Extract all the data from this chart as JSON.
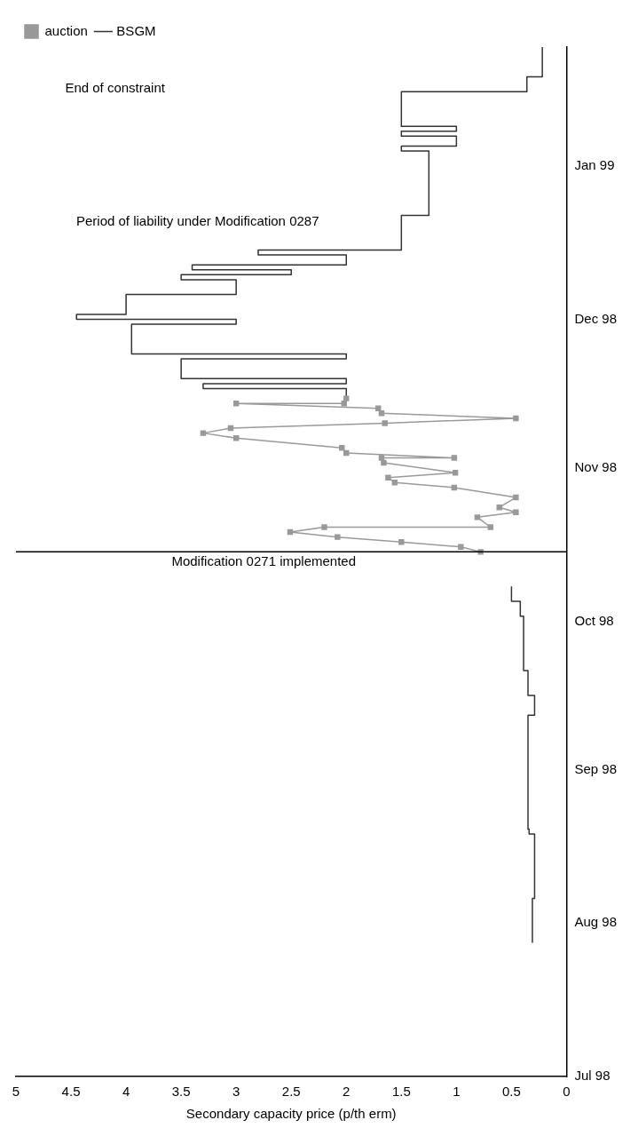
{
  "chart_data": {
    "type": "line",
    "orientation": "horizontal",
    "xlabel": "Secondary capacity price (p/th erm)",
    "xlim": [
      5,
      0
    ],
    "xticks": [
      0,
      0.5,
      1,
      1.5,
      2,
      2.5,
      3,
      3.5,
      4,
      4.5,
      5
    ],
    "ylim": [
      "1998-07-01",
      "1999-01-25"
    ],
    "yticks": [
      {
        "value": "1998-07-01",
        "label": "Jul 98"
      },
      {
        "value": "1998-08-01",
        "label": "Aug 98"
      },
      {
        "value": "1998-09-01",
        "label": "Sep 98"
      },
      {
        "value": "1998-10-01",
        "label": "Oct 98"
      },
      {
        "value": "1998-11-01",
        "label": "Nov 98"
      },
      {
        "value": "1998-12-01",
        "label": "Dec 98"
      },
      {
        "value": "1999-01-01",
        "label": "Jan 99"
      }
    ],
    "grid": false,
    "legend": "top left",
    "line_style": "solid",
    "series": [
      {
        "name": "auction",
        "type": "line",
        "color": "#999999",
        "marker": "square",
        "x": [
          "1998-10-15",
          "1998-10-16",
          "1998-10-17",
          "1998-10-18",
          "1998-10-19",
          "1998-10-20",
          "1998-10-20",
          "1998-10-22",
          "1998-10-23",
          "1998-10-24",
          "1998-10-26",
          "1998-10-28",
          "1998-10-29",
          "1998-10-30",
          "1998-10-31",
          "1998-11-02",
          "1998-11-03",
          "1998-11-03",
          "1998-11-04",
          "1998-11-05",
          "1998-11-07",
          "1998-11-08",
          "1998-11-09",
          "1998-11-10",
          "1998-11-11",
          "1998-11-12",
          "1998-11-13",
          "1998-11-14",
          "1998-11-14",
          "1998-11-15"
        ],
        "values": [
          0.78,
          0.96,
          1.5,
          2.08,
          2.51,
          2.2,
          0.69,
          0.81,
          0.46,
          0.61,
          0.46,
          1.02,
          1.56,
          1.62,
          1.01,
          1.66,
          1.68,
          1.02,
          2.0,
          2.04,
          3.0,
          3.3,
          3.05,
          1.65,
          0.46,
          1.68,
          1.71,
          3.0,
          2.02,
          2.0
        ]
      },
      {
        "name": "BSGM",
        "type": "step",
        "color": "#333333",
        "marker": "none",
        "x": [
          "1998-07-28",
          "1998-08-06",
          "1998-08-19",
          "1998-08-20",
          "1998-09-12",
          "1998-09-16",
          "1998-09-21",
          "1998-10-02",
          "1998-10-05",
          "1998-10-08",
          null,
          "1998-11-15",
          "1998-11-17",
          "1998-11-18",
          "1998-11-19",
          "1998-11-22",
          "1998-11-23",
          "1998-11-24",
          "1998-11-29",
          "1998-11-30",
          "1998-12-01",
          "1998-12-02",
          "1998-12-05",
          "1998-12-06",
          "1998-12-08",
          "1998-12-09",
          "1998-12-10",
          "1998-12-11",
          "1998-12-12",
          "1998-12-14",
          "1998-12-15",
          "1998-12-21",
          "1998-12-22",
          "1999-01-02",
          "1999-01-04",
          "1999-01-05",
          "1999-01-07",
          "1999-01-08",
          "1999-01-09",
          "1999-01-13",
          "1999-01-16",
          "1999-01-19",
          "1999-01-25"
        ],
        "values": [
          0.31,
          0.29,
          0.34,
          0.35,
          0.29,
          0.35,
          0.39,
          0.42,
          0.5,
          0.5,
          null,
          2.0,
          3.3,
          2.0,
          3.5,
          3.5,
          2.0,
          3.95,
          3.95,
          3.0,
          4.45,
          4.0,
          4.0,
          3.0,
          3.0,
          3.5,
          2.5,
          3.4,
          2.0,
          2.8,
          1.5,
          1.5,
          1.25,
          1.25,
          1.5,
          1.0,
          1.5,
          1.0,
          1.5,
          1.5,
          0.36,
          0.22,
          0.22
        ]
      }
    ],
    "ref_lines": [
      {
        "axis": "y",
        "value": "1998-10-15",
        "color": "#000000",
        "line_style": "solid"
      }
    ],
    "annotations": [
      "Period of liability under Modification 0287",
      "Modification 0271 implemented",
      "End of constraint"
    ]
  }
}
